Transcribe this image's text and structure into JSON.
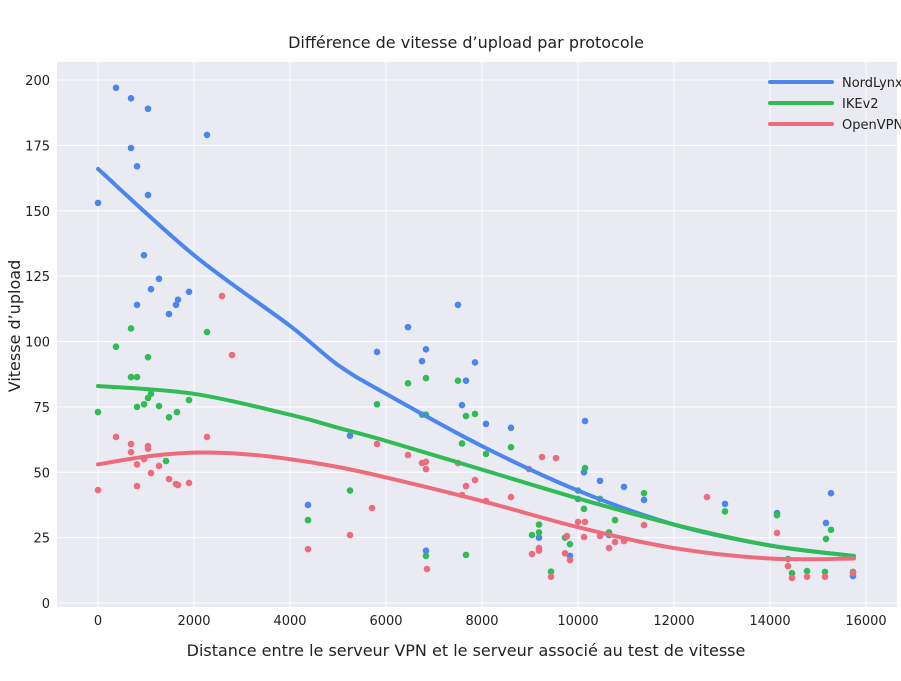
{
  "chart_data": {
    "type": "scatter",
    "title": "Différence de vitesse d’upload par protocole",
    "xlabel": "Distance entre le serveur VPN et le serveur associé au test de vitesse",
    "ylabel": "Vitesse d’upload",
    "xlim": [
      -1000,
      16500
    ],
    "ylim": [
      0,
      207
    ],
    "xticks": [
      0,
      2000,
      4000,
      6000,
      8000,
      10000,
      12000,
      14000,
      16000
    ],
    "yticks": [
      0,
      25,
      50,
      75,
      100,
      125,
      150,
      175,
      200
    ],
    "grid": true,
    "legend_position": "top-right",
    "series": [
      {
        "name": "NordLynx",
        "color": "#4a86ee",
        "points": [
          [
            0,
            153
          ],
          [
            375,
            197
          ],
          [
            688,
            193
          ],
          [
            1042,
            189
          ],
          [
            688,
            174
          ],
          [
            813,
            167
          ],
          [
            1042,
            156
          ],
          [
            2271,
            179
          ],
          [
            958,
            133
          ],
          [
            1271,
            124
          ],
          [
            1104,
            120
          ],
          [
            813,
            114
          ],
          [
            1667,
            116
          ],
          [
            1625,
            114
          ],
          [
            1479,
            110.5
          ],
          [
            1896,
            119
          ],
          [
            4375,
            37.5
          ],
          [
            7500,
            114
          ],
          [
            6458,
            105.5
          ],
          [
            5813,
            96
          ],
          [
            6833,
            97
          ],
          [
            6750,
            92.5
          ],
          [
            7854,
            92
          ],
          [
            7667,
            85
          ],
          [
            7583,
            75.7
          ],
          [
            8083,
            68.5
          ],
          [
            8604,
            67
          ],
          [
            5250,
            64
          ],
          [
            10146,
            69.6
          ],
          [
            10458,
            46.7
          ],
          [
            10125,
            50
          ],
          [
            10000,
            39.8
          ],
          [
            6833,
            20
          ],
          [
            9187,
            25
          ],
          [
            9833,
            18
          ],
          [
            10958,
            44.4
          ],
          [
            11375,
            39.4
          ],
          [
            13062,
            37.9
          ],
          [
            14146,
            34.4
          ],
          [
            15271,
            42
          ],
          [
            15167,
            30.6
          ],
          [
            15729,
            10.3
          ],
          [
            10646,
            26
          ]
        ],
        "trend": [
          [
            0,
            166
          ],
          [
            2000,
            133
          ],
          [
            4000,
            106
          ],
          [
            5000,
            91
          ],
          [
            6000,
            80
          ],
          [
            8000,
            60
          ],
          [
            10000,
            43
          ],
          [
            12000,
            30
          ],
          [
            14000,
            22
          ],
          [
            15750,
            18
          ]
        ]
      },
      {
        "name": "IKEv2",
        "color": "#2fbb55",
        "points": [
          [
            0,
            73
          ],
          [
            375,
            98
          ],
          [
            688,
            105
          ],
          [
            1042,
            94
          ],
          [
            688,
            86.4
          ],
          [
            813,
            86.4
          ],
          [
            2271,
            103.6
          ],
          [
            813,
            75
          ],
          [
            958,
            76
          ],
          [
            1042,
            78.4
          ],
          [
            1104,
            80
          ],
          [
            1271,
            75.3
          ],
          [
            1479,
            71
          ],
          [
            1646,
            73
          ],
          [
            1896,
            77.6
          ],
          [
            1417,
            54.3
          ],
          [
            4375,
            31.7
          ],
          [
            5250,
            43
          ],
          [
            5813,
            76
          ],
          [
            6458,
            84
          ],
          [
            6833,
            86
          ],
          [
            6750,
            72
          ],
          [
            6833,
            72
          ],
          [
            7500,
            85
          ],
          [
            7667,
            71.5
          ],
          [
            7854,
            72.3
          ],
          [
            7583,
            61
          ],
          [
            8083,
            57
          ],
          [
            8604,
            59.6
          ],
          [
            6833,
            18
          ],
          [
            7667,
            18.4
          ],
          [
            9042,
            26
          ],
          [
            9187,
            30
          ],
          [
            9187,
            27
          ],
          [
            9437,
            12
          ],
          [
            9729,
            25
          ],
          [
            9833,
            22.5
          ],
          [
            10125,
            36
          ],
          [
            10146,
            51.6
          ],
          [
            10000,
            43
          ],
          [
            10458,
            39.8
          ],
          [
            10771,
            31.7
          ],
          [
            10646,
            27
          ],
          [
            11375,
            42
          ],
          [
            13062,
            35
          ],
          [
            14146,
            33.6
          ],
          [
            15271,
            28
          ],
          [
            15167,
            24.5
          ],
          [
            14375,
            16.8
          ],
          [
            14458,
            11.4
          ],
          [
            14771,
            12.2
          ],
          [
            15146,
            11.9
          ],
          [
            15729,
            11.9
          ]
        ],
        "trend": [
          [
            0,
            83
          ],
          [
            2000,
            80
          ],
          [
            4000,
            72
          ],
          [
            5000,
            67
          ],
          [
            6000,
            62
          ],
          [
            8000,
            51
          ],
          [
            10000,
            40
          ],
          [
            12000,
            30
          ],
          [
            14000,
            22
          ],
          [
            15750,
            18
          ]
        ]
      },
      {
        "name": "OpenVPN",
        "color": "#ee6b7b",
        "points": [
          [
            0,
            43.2
          ],
          [
            375,
            63.5
          ],
          [
            688,
            60.8
          ],
          [
            688,
            57.7
          ],
          [
            1042,
            60
          ],
          [
            1042,
            59
          ],
          [
            958,
            55
          ],
          [
            813,
            53
          ],
          [
            1271,
            52.4
          ],
          [
            1104,
            49.7
          ],
          [
            813,
            44.7
          ],
          [
            1479,
            47.4
          ],
          [
            1625,
            45.5
          ],
          [
            1667,
            45.1
          ],
          [
            1896,
            45.9
          ],
          [
            2271,
            63.5
          ],
          [
            2583,
            117.4
          ],
          [
            2792,
            94.8
          ],
          [
            4375,
            20.6
          ],
          [
            5250,
            26
          ],
          [
            5708,
            36.3
          ],
          [
            5813,
            60.8
          ],
          [
            6458,
            56.6
          ],
          [
            6750,
            53.5
          ],
          [
            6833,
            54
          ],
          [
            6833,
            51.2
          ],
          [
            6854,
            13
          ],
          [
            7500,
            53.5
          ],
          [
            7667,
            44.7
          ],
          [
            7854,
            47
          ],
          [
            7583,
            41.3
          ],
          [
            8083,
            39
          ],
          [
            8604,
            40.5
          ],
          [
            8979,
            51.2
          ],
          [
            9250,
            55.8
          ],
          [
            9542,
            55.4
          ],
          [
            9042,
            18.7
          ],
          [
            9187,
            21
          ],
          [
            9187,
            20
          ],
          [
            9437,
            10
          ],
          [
            9729,
            19
          ],
          [
            9771,
            25.6
          ],
          [
            9833,
            16.4
          ],
          [
            10000,
            31
          ],
          [
            10146,
            31
          ],
          [
            10125,
            25.2
          ],
          [
            10458,
            25.6
          ],
          [
            10646,
            21
          ],
          [
            10771,
            23.3
          ],
          [
            11375,
            29.8
          ],
          [
            12687,
            40.5
          ],
          [
            14146,
            26.8
          ],
          [
            14375,
            14.1
          ],
          [
            14458,
            9.6
          ],
          [
            14771,
            10
          ],
          [
            15146,
            10
          ],
          [
            15729,
            11.5
          ],
          [
            10958,
            23.7
          ]
        ],
        "trend": [
          [
            0,
            53
          ],
          [
            1000,
            56
          ],
          [
            2000,
            57.5
          ],
          [
            3000,
            57
          ],
          [
            4000,
            55
          ],
          [
            5000,
            52
          ],
          [
            6000,
            48
          ],
          [
            8000,
            39
          ],
          [
            10000,
            29
          ],
          [
            12000,
            21
          ],
          [
            14000,
            17
          ],
          [
            15750,
            17
          ]
        ]
      }
    ]
  }
}
